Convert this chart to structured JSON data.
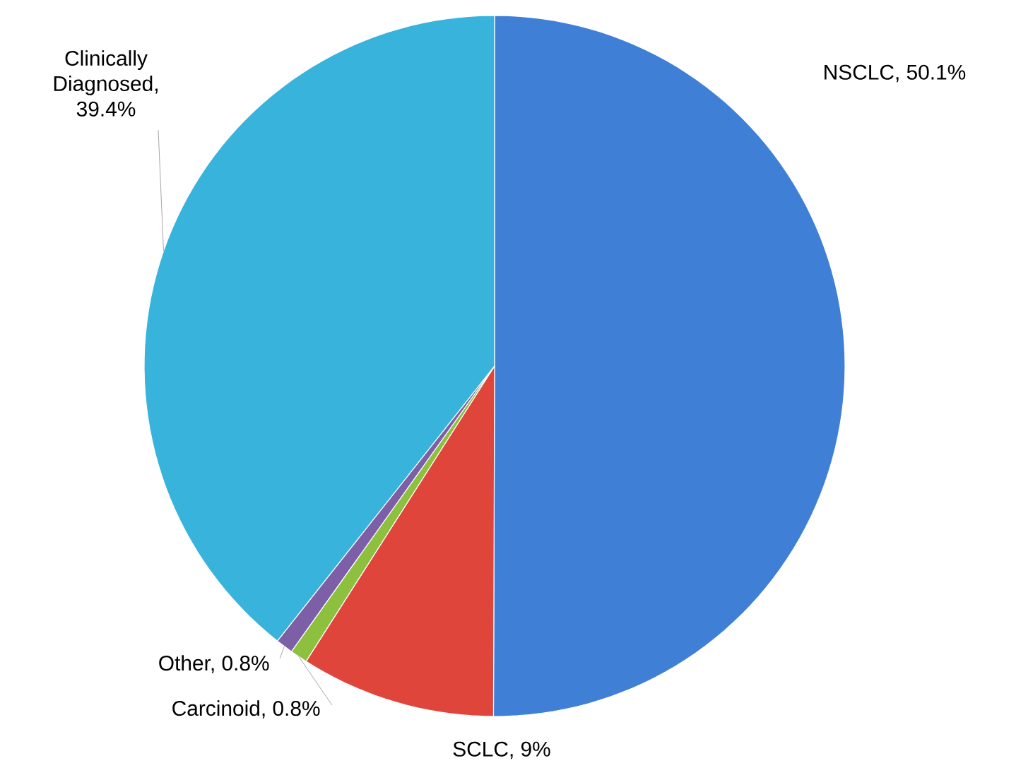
{
  "chart_data": {
    "type": "pie",
    "values": [
      50.1,
      9,
      0.8,
      0.8,
      39.4
    ],
    "value_labels": [
      "NSCLC, 50.1%",
      "SCLC, 9%",
      "Carcinoid, 0.8%",
      "Other, 0.8%",
      "Clinically Diagnosed, 39.4%"
    ],
    "colors": [
      "#3f80d6",
      "#e0453b",
      "#8dc03f",
      "#7d5fa8",
      "#37b3dc"
    ]
  }
}
